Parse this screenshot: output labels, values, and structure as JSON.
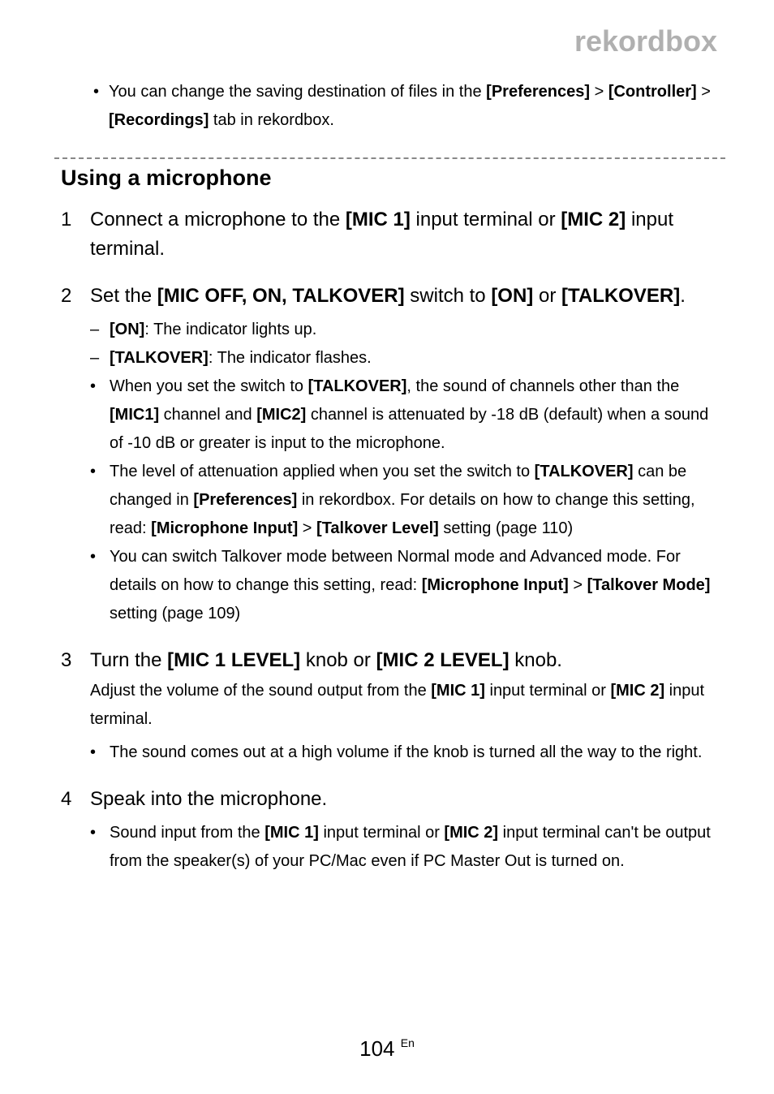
{
  "brand": "rekordbox",
  "top_bullet_parts": {
    "t1": "You can change the saving destination of files in the ",
    "b1": "[Preferences]",
    "t2": " > ",
    "b2": "[Controller]",
    "t3": " > ",
    "b3": "[Recordings]",
    "t4": " tab in rekordbox."
  },
  "section_heading": "Using a microphone",
  "step1": {
    "num": "1",
    "title_parts": {
      "t1": "Connect a microphone to the ",
      "b1": "[MIC 1]",
      "t2": " input terminal or ",
      "b2": "[MIC 2]",
      "t3": " input terminal."
    }
  },
  "step2": {
    "num": "2",
    "title_parts": {
      "t1": "Set the ",
      "b1": "[MIC OFF, ON, TALKOVER]",
      "t2": " switch to ",
      "b2": "[ON]",
      "t3": " or ",
      "b3": "[TALKOVER]",
      "t4": "."
    },
    "dash1": {
      "b1": "[ON]",
      "t1": ": The indicator lights up."
    },
    "dash2": {
      "b1": "[TALKOVER]",
      "t1": ": The indicator flashes."
    },
    "bul1": {
      "t1": "When you set the switch to ",
      "b1": "[TALKOVER]",
      "t2": ", the sound of channels other than the ",
      "b2": "[MIC1]",
      "t3": " channel and ",
      "b3": "[MIC2]",
      "t4": " channel is attenuated by -18 dB (default) when a sound of -10 dB or greater is input to the microphone."
    },
    "bul2": {
      "t1": "The level of attenuation applied when you set the switch to ",
      "b1": "[TALKOVER]",
      "t2": " can be changed in ",
      "b2": "[Preferences]",
      "t3": " in rekordbox. For details on how to change this setting, read: ",
      "b3": "[Microphone Input]",
      "t4": " > ",
      "b4": "[Talkover Level]",
      "t5": " setting (page 110)"
    },
    "bul3": {
      "t1": "You can switch Talkover mode between Normal mode and Advanced mode. For details on how to change this setting, read: ",
      "b1": "[Microphone Input]",
      "t2": " > ",
      "b2": "[Talkover Mode]",
      "t3": " setting (page 109)"
    }
  },
  "step3": {
    "num": "3",
    "title_parts": {
      "t1": "Turn the ",
      "b1": "[MIC 1 LEVEL]",
      "t2": " knob or ",
      "b2": "[MIC 2 LEVEL]",
      "t3": " knob."
    },
    "desc": {
      "t1": "Adjust the volume of the sound output from the ",
      "b1": "[MIC 1]",
      "t2": " input terminal or ",
      "b2": "[MIC 2]",
      "t3": " input terminal."
    },
    "bul1": {
      "t1": "The sound comes out at a high volume if the knob is turned all the way to the right."
    }
  },
  "step4": {
    "num": "4",
    "title": "Speak into the microphone.",
    "bul1": {
      "t1": "Sound input from the ",
      "b1": "[MIC 1]",
      "t2": " input terminal or ",
      "b2": "[MIC 2]",
      "t3": " input terminal can't be output from the speaker(s) of your PC/Mac even if PC Master Out is turned on."
    }
  },
  "page_number": "104",
  "page_lang": "En"
}
